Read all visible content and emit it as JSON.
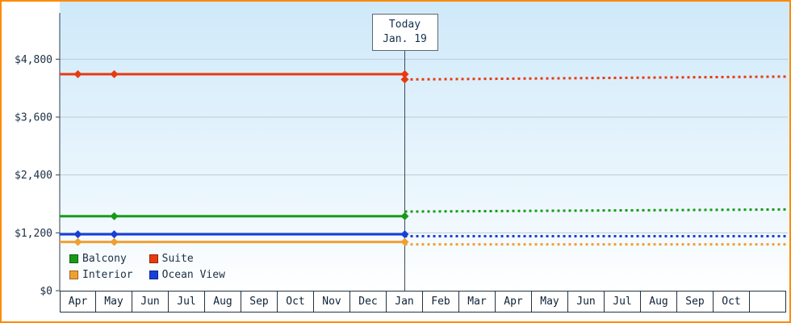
{
  "frame": {
    "border_color": "#ff8a00"
  },
  "annotation": {
    "line1": "Today",
    "line2": "Jan. 19"
  },
  "legend": {
    "items": [
      {
        "label": "Balcony",
        "color": "#189a18"
      },
      {
        "label": "Suite",
        "color": "#e83a10"
      },
      {
        "label": "Interior",
        "color": "#f0a030"
      },
      {
        "label": "Ocean View",
        "color": "#1640d8"
      }
    ]
  },
  "chart_data": {
    "type": "line",
    "title": "",
    "xlabel": "",
    "ylabel": "",
    "grid": true,
    "legend_position": "bottom-left",
    "x_labels": [
      "Apr",
      "May",
      "Jun",
      "Jul",
      "Aug",
      "Sep",
      "Oct",
      "Nov",
      "Dec",
      "Jan",
      "Feb",
      "Mar",
      "Apr",
      "May",
      "Jun",
      "Jul",
      "Aug",
      "Sep",
      "Oct",
      ""
    ],
    "y_ticks": [
      {
        "value": 0,
        "label": "$0"
      },
      {
        "value": 1200,
        "label": "$1,200"
      },
      {
        "value": 2400,
        "label": "$2,400"
      },
      {
        "value": 3600,
        "label": "$3,600"
      },
      {
        "value": 4800,
        "label": "$4,800"
      }
    ],
    "ylim": [
      0,
      5760
    ],
    "today": {
      "column_index": 9,
      "title": "Today",
      "date": "Jan. 19"
    },
    "series": [
      {
        "name": "Interior",
        "color": "#f0a030",
        "history_value": 1010,
        "marker_columns": [
          0,
          1,
          9
        ],
        "forecast": {
          "start": 960,
          "end": 960,
          "marker": false
        }
      },
      {
        "name": "Ocean View",
        "color": "#1640d8",
        "history_value": 1170,
        "marker_columns": [
          0,
          1,
          9
        ],
        "forecast": {
          "start": 1130,
          "end": 1130,
          "marker": false
        }
      },
      {
        "name": "Balcony",
        "color": "#189a18",
        "history_value": 1545,
        "marker_columns": [
          1,
          9
        ],
        "forecast": {
          "start": 1640,
          "end": 1685,
          "marker": false
        }
      },
      {
        "name": "Suite",
        "color": "#e83a10",
        "history_value": 4490,
        "marker_columns": [
          0,
          1,
          9
        ],
        "forecast": {
          "start": 4380,
          "end": 4440,
          "marker": true
        }
      }
    ]
  }
}
